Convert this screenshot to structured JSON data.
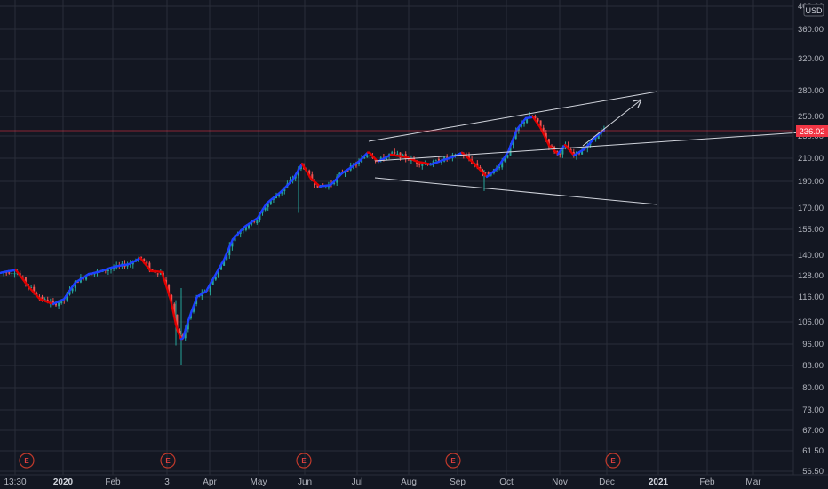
{
  "chart_data": {
    "type": "candlestick",
    "currency": "USD",
    "last_price": "236.02",
    "y_ticks": [
      "400.00",
      "360.00",
      "320.00",
      "280.00",
      "250.00",
      "230.00",
      "210.00",
      "190.00",
      "170.00",
      "155.00",
      "140.00",
      "128.00",
      "116.00",
      "106.00",
      "96.00",
      "88.00",
      "80.00",
      "73.00",
      "67.00",
      "61.50",
      "56.50"
    ],
    "x_ticks": [
      {
        "label": "13:30",
        "bold": false
      },
      {
        "label": "2020",
        "bold": true
      },
      {
        "label": "Feb",
        "bold": false
      },
      {
        "label": "3",
        "bold": false
      },
      {
        "label": "Apr",
        "bold": false
      },
      {
        "label": "May",
        "bold": false
      },
      {
        "label": "Jun",
        "bold": false
      },
      {
        "label": "Jul",
        "bold": false
      },
      {
        "label": "Aug",
        "bold": false
      },
      {
        "label": "Sep",
        "bold": false
      },
      {
        "label": "Oct",
        "bold": false
      },
      {
        "label": "Nov",
        "bold": false
      },
      {
        "label": "Dec",
        "bold": false
      },
      {
        "label": "2021",
        "bold": true
      },
      {
        "label": "Feb",
        "bold": false
      },
      {
        "label": "Mar",
        "bold": false
      }
    ],
    "earnings_marker": "E",
    "earnings_count": 5,
    "price_path": [
      [
        0,
        130
      ],
      [
        18,
        131
      ],
      [
        30,
        124
      ],
      [
        45,
        117
      ],
      [
        60,
        114
      ],
      [
        72,
        116
      ],
      [
        85,
        125
      ],
      [
        100,
        130
      ],
      [
        115,
        131
      ],
      [
        130,
        133
      ],
      [
        145,
        135
      ],
      [
        158,
        139
      ],
      [
        170,
        131
      ],
      [
        182,
        130
      ],
      [
        192,
        116
      ],
      [
        199,
        103
      ],
      [
        205,
        98
      ],
      [
        212,
        107
      ],
      [
        222,
        118
      ],
      [
        232,
        120
      ],
      [
        242,
        128
      ],
      [
        252,
        137
      ],
      [
        262,
        150
      ],
      [
        275,
        158
      ],
      [
        290,
        163
      ],
      [
        300,
        173
      ],
      [
        315,
        182
      ],
      [
        330,
        193
      ],
      [
        340,
        205
      ],
      [
        350,
        192
      ],
      [
        360,
        186
      ],
      [
        372,
        188
      ],
      [
        385,
        198
      ],
      [
        395,
        202
      ],
      [
        405,
        207
      ],
      [
        415,
        215
      ],
      [
        425,
        207
      ],
      [
        440,
        214
      ],
      [
        455,
        211
      ],
      [
        470,
        206
      ],
      [
        485,
        205
      ],
      [
        498,
        209
      ],
      [
        510,
        211
      ],
      [
        520,
        214
      ],
      [
        535,
        204
      ],
      [
        548,
        195
      ],
      [
        560,
        202
      ],
      [
        572,
        215
      ],
      [
        582,
        236
      ],
      [
        592,
        248
      ],
      [
        600,
        250
      ],
      [
        608,
        240
      ],
      [
        618,
        222
      ],
      [
        628,
        213
      ],
      [
        636,
        221
      ],
      [
        646,
        212
      ],
      [
        658,
        219
      ],
      [
        670,
        230
      ],
      [
        680,
        236
      ]
    ],
    "ma_colors": {
      "up": "#1e40ff",
      "down": "#e00000"
    },
    "candle_colors": {
      "up": "#26a69a",
      "down": "#ef5350"
    },
    "accent_colors": {
      "last_price_line": "#f23645",
      "drawings": "#d1d4dc",
      "grid": "#2a2e39"
    }
  }
}
